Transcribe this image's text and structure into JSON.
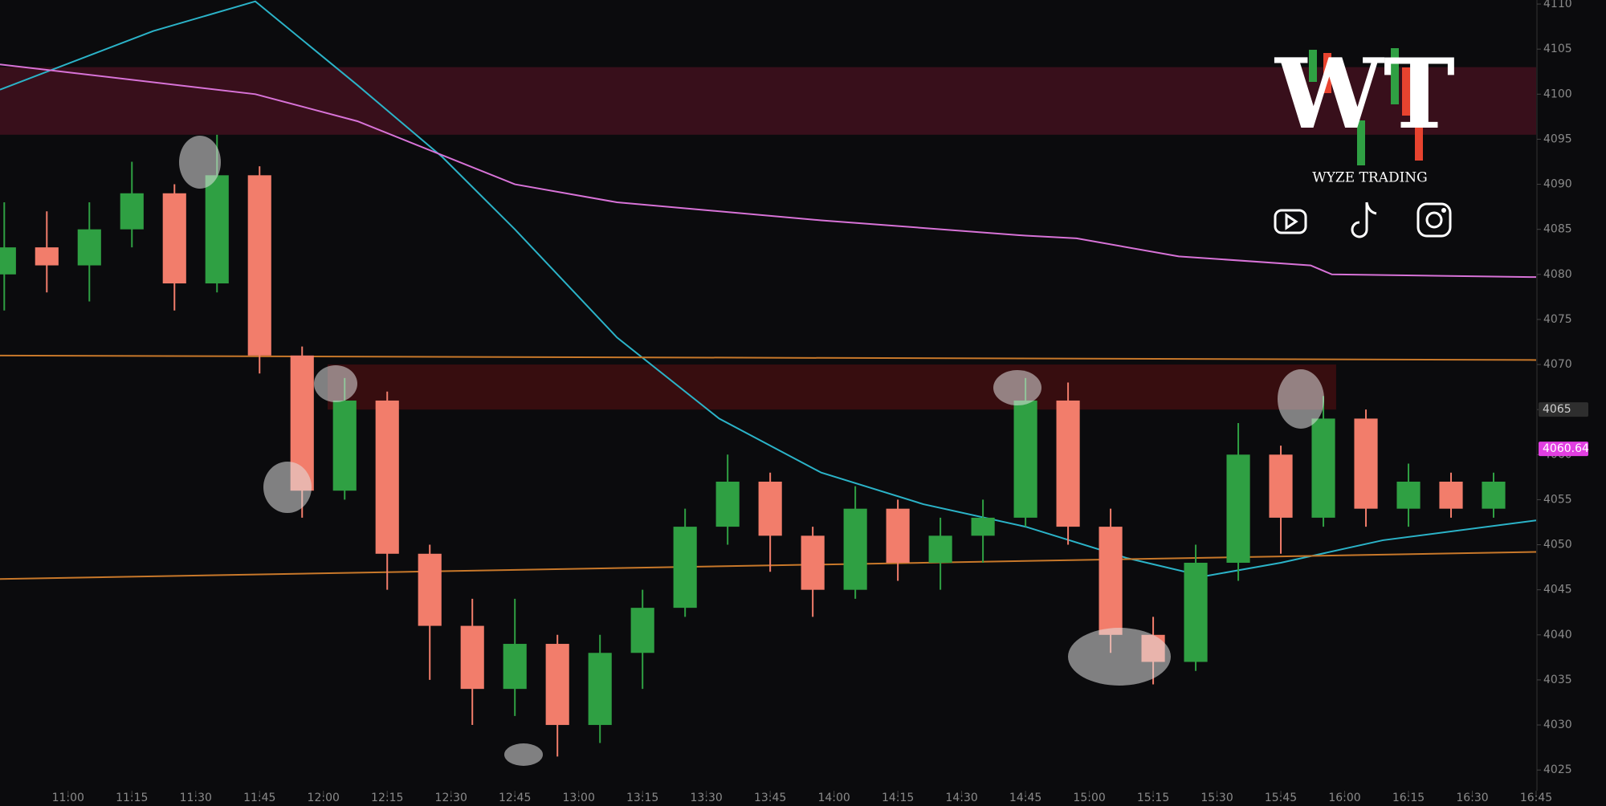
{
  "chart_data": {
    "type": "candlestick",
    "xlim": [
      "10:44",
      "16:45"
    ],
    "ylim": [
      4022.7,
      4110.45
    ],
    "xticks": [
      "11:00",
      "11:15",
      "11:30",
      "11:45",
      "12:00",
      "12:15",
      "12:30",
      "12:45",
      "13:00",
      "13:15",
      "13:30",
      "13:45",
      "14:00",
      "14:15",
      "14:30",
      "14:45",
      "15:00",
      "15:15",
      "15:30",
      "15:45",
      "16:00",
      "16:15",
      "16:30",
      "16:45"
    ],
    "yticks": [
      4025,
      4030,
      4035,
      4040,
      4045,
      4050,
      4055,
      4060,
      4065,
      4070,
      4075,
      4080,
      4085,
      4090,
      4095,
      4100,
      4105,
      4110
    ],
    "up_color": "#2fa043",
    "down_color": "#f27d6b",
    "candles": {
      "x": [
        "10:45",
        "10:55",
        "11:05",
        "11:15",
        "11:25",
        "11:35",
        "11:45",
        "11:55",
        "12:05",
        "12:15",
        "12:25",
        "12:35",
        "12:45",
        "12:55",
        "13:05",
        "13:15",
        "13:25",
        "13:35",
        "13:45",
        "13:55",
        "14:05",
        "14:15",
        "14:25",
        "14:35",
        "14:45",
        "14:55",
        "15:05",
        "15:15",
        "15:25",
        "15:35",
        "15:45",
        "15:55",
        "16:05",
        "16:15",
        "16:25",
        "16:35"
      ],
      "open": [
        4080,
        4083,
        4081,
        4085,
        4089,
        4079,
        4091,
        4071,
        4056,
        4066,
        4049,
        4041,
        4034,
        4039,
        4030,
        4038,
        4043,
        4052,
        4057,
        4051,
        4045,
        4054,
        4048,
        4051,
        4053,
        4066,
        4052,
        4040,
        4037,
        4048,
        4060,
        4053,
        4064,
        4054,
        4057,
        4054
      ],
      "high": [
        4088,
        4087,
        4088,
        4092.5,
        4090,
        4095.5,
        4092,
        4072,
        4068.5,
        4067,
        4050,
        4044,
        4044,
        4040,
        4040,
        4045,
        4054,
        4060,
        4058,
        4052,
        4056.5,
        4055,
        4053,
        4055,
        4068.5,
        4068,
        4054,
        4042,
        4050,
        4063.5,
        4061,
        4066.5,
        4065,
        4059,
        4058,
        4058
      ],
      "low": [
        4076,
        4078,
        4077,
        4083,
        4076,
        4078,
        4069,
        4053,
        4055,
        4045,
        4035,
        4030,
        4031,
        4026.5,
        4028,
        4034,
        4042,
        4050,
        4047,
        4042,
        4044,
        4046,
        4045,
        4048,
        4052,
        4050,
        4038,
        4034.5,
        4036,
        4046,
        4049,
        4052,
        4052,
        4052,
        4053,
        4053
      ],
      "close": [
        4083,
        4081,
        4085,
        4089,
        4079,
        4091,
        4071,
        4056,
        4066,
        4049,
        4041,
        4034,
        4039,
        4030,
        4038,
        4043,
        4052,
        4057,
        4051,
        4045,
        4054,
        4048,
        4051,
        4053,
        4066,
        4052,
        4040,
        4037,
        4048,
        4060,
        4053,
        4064,
        4054,
        4057,
        4054,
        4057
      ]
    },
    "lines": [
      {
        "color": "#2bb3c8",
        "x": [
          "10:44",
          "11:20",
          "11:44",
          "12:08",
          "12:28",
          "12:45",
          "13:09",
          "13:33",
          "13:57",
          "14:21",
          "14:45",
          "15:09",
          "15:27",
          "15:45",
          "16:09",
          "16:45"
        ],
        "values": [
          4100.5,
          4107,
          4110.3,
          4101,
          4093,
          4085,
          4073,
          4064,
          4058,
          4054.5,
          4052,
          4048.5,
          4046.5,
          4048,
          4050.5,
          4052.7
        ]
      },
      {
        "color": "#d873d8",
        "x": [
          "10:44",
          "11:44",
          "12:08",
          "12:45",
          "13:09",
          "13:57",
          "14:45",
          "14:57",
          "15:21",
          "15:52",
          "15:57",
          "16:45"
        ],
        "values": [
          4103.3,
          4100,
          4097,
          4090,
          4088,
          4086,
          4084.3,
          4084,
          4082,
          4081,
          4080,
          4079.7
        ]
      },
      {
        "color": "#c8782a",
        "x": [
          "10:44",
          "16:45"
        ],
        "values": [
          4071,
          4070.5
        ]
      },
      {
        "color": "#c8782a",
        "x": [
          "10:44",
          "16:45"
        ],
        "values": [
          4046.2,
          4049.2
        ]
      }
    ],
    "zones": [
      {
        "from": "10:44",
        "to": "16:45",
        "low": 4095.5,
        "high": 4103,
        "color": "#3b101c"
      },
      {
        "from": "12:01",
        "to": "15:58",
        "low": 4065,
        "high": 4070,
        "color": "#3a0e10"
      }
    ],
    "markers": [
      {
        "value": 4065,
        "color": "#2e2e2e",
        "text_color": "#cfcfcf"
      },
      {
        "value": 4060.64,
        "color": "#e23fe2",
        "text_color": "#ffffff"
      }
    ]
  },
  "logo": {
    "mark": "WT",
    "name": "WYZE TRADING"
  }
}
